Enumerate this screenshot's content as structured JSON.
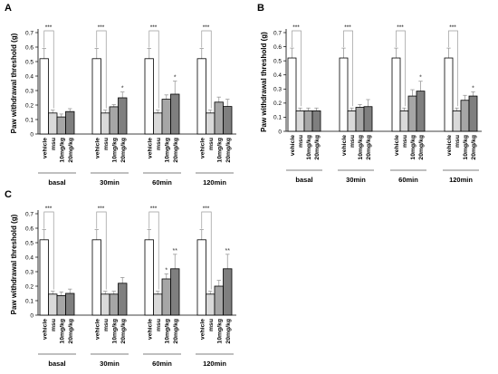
{
  "colors": {
    "vehicle": "#ffffff",
    "msu": "#d9d9d9",
    "dose10": "#a6a6a6",
    "dose20": "#7f7f7f",
    "stroke": "#000000",
    "error": "#9a9a9a"
  },
  "chart_data": [
    {
      "type": "bar",
      "panel_label": "A",
      "ylabel": "Paw withdrawal threshold (g)",
      "ylim": [
        0,
        0.7
      ],
      "yticks": [
        "0",
        "0.1",
        "0.2",
        "0.3",
        "0.4",
        "0.5",
        "0.6",
        "0.7"
      ],
      "bar_labels": [
        "vehicle",
        "msu",
        "10mg/kg",
        "20mg/kg"
      ],
      "groups": [
        {
          "label": "basal",
          "values": [
            0.52,
            0.145,
            0.118,
            0.155
          ],
          "errors": [
            0.07,
            0.02,
            0.02,
            0.02
          ],
          "marks": [
            "",
            "",
            "",
            ""
          ],
          "bracket": "***"
        },
        {
          "label": "30min",
          "values": [
            0.52,
            0.145,
            0.188,
            0.25
          ],
          "errors": [
            0.07,
            0.02,
            0.015,
            0.04
          ],
          "marks": [
            "",
            "",
            "",
            "*"
          ],
          "bracket": "***"
        },
        {
          "label": "60min",
          "values": [
            0.52,
            0.145,
            0.24,
            0.275
          ],
          "errors": [
            0.07,
            0.02,
            0.03,
            0.09
          ],
          "marks": [
            "",
            "",
            "",
            "*"
          ],
          "bracket": "***"
        },
        {
          "label": "120min",
          "values": [
            0.52,
            0.145,
            0.22,
            0.19
          ],
          "errors": [
            0.07,
            0.02,
            0.035,
            0.05
          ],
          "marks": [
            "",
            "",
            "",
            ""
          ],
          "bracket": "***"
        }
      ]
    },
    {
      "type": "bar",
      "panel_label": "B",
      "ylabel": "Paw withdrawal threshold (g)",
      "ylim": [
        0,
        0.7
      ],
      "yticks": [
        "0",
        "0.1",
        "0.2",
        "0.3",
        "0.4",
        "0.5",
        "0.6",
        "0.7"
      ],
      "bar_labels": [
        "vehicle",
        "msu",
        "10mg/kg",
        "20mg/kg"
      ],
      "groups": [
        {
          "label": "basal",
          "values": [
            0.52,
            0.145,
            0.145,
            0.145
          ],
          "errors": [
            0.07,
            0.02,
            0.02,
            0.02
          ],
          "marks": [
            "",
            "",
            "",
            ""
          ],
          "bracket": "***"
        },
        {
          "label": "30min",
          "values": [
            0.52,
            0.145,
            0.17,
            0.175
          ],
          "errors": [
            0.07,
            0.02,
            0.02,
            0.05
          ],
          "marks": [
            "",
            "",
            "",
            ""
          ],
          "bracket": "***"
        },
        {
          "label": "60min",
          "values": [
            0.52,
            0.145,
            0.25,
            0.285
          ],
          "errors": [
            0.07,
            0.02,
            0.045,
            0.07
          ],
          "marks": [
            "",
            "",
            "",
            "*"
          ],
          "bracket": "***"
        },
        {
          "label": "120min",
          "values": [
            0.52,
            0.145,
            0.22,
            0.25
          ],
          "errors": [
            0.07,
            0.02,
            0.035,
            0.03
          ],
          "marks": [
            "",
            "",
            "",
            "*"
          ],
          "bracket": "***"
        }
      ]
    },
    {
      "type": "bar",
      "panel_label": "C",
      "ylabel": "Paw withdrawal threshold (g)",
      "ylim": [
        0,
        0.7
      ],
      "yticks": [
        "0",
        "0.1",
        "0.2",
        "0.3",
        "0.4",
        "0.5",
        "0.6",
        "0.7"
      ],
      "bar_labels": [
        "vehicle",
        "msu",
        "10mg/kg",
        "20mg/kg"
      ],
      "groups": [
        {
          "label": "basal",
          "values": [
            0.52,
            0.145,
            0.135,
            0.15
          ],
          "errors": [
            0.07,
            0.02,
            0.025,
            0.03
          ],
          "marks": [
            "",
            "",
            "",
            ""
          ],
          "bracket": "***"
        },
        {
          "label": "30min",
          "values": [
            0.52,
            0.145,
            0.145,
            0.22
          ],
          "errors": [
            0.07,
            0.02,
            0.02,
            0.04
          ],
          "marks": [
            "",
            "",
            "",
            ""
          ],
          "bracket": "***"
        },
        {
          "label": "60min",
          "values": [
            0.52,
            0.145,
            0.25,
            0.32
          ],
          "errors": [
            0.07,
            0.02,
            0.035,
            0.1
          ],
          "marks": [
            "",
            "",
            "*",
            "**"
          ],
          "bracket": "***"
        },
        {
          "label": "120min",
          "values": [
            0.52,
            0.145,
            0.2,
            0.32
          ],
          "errors": [
            0.07,
            0.02,
            0.04,
            0.1
          ],
          "marks": [
            "",
            "",
            "",
            "**"
          ],
          "bracket": "***"
        }
      ]
    }
  ]
}
